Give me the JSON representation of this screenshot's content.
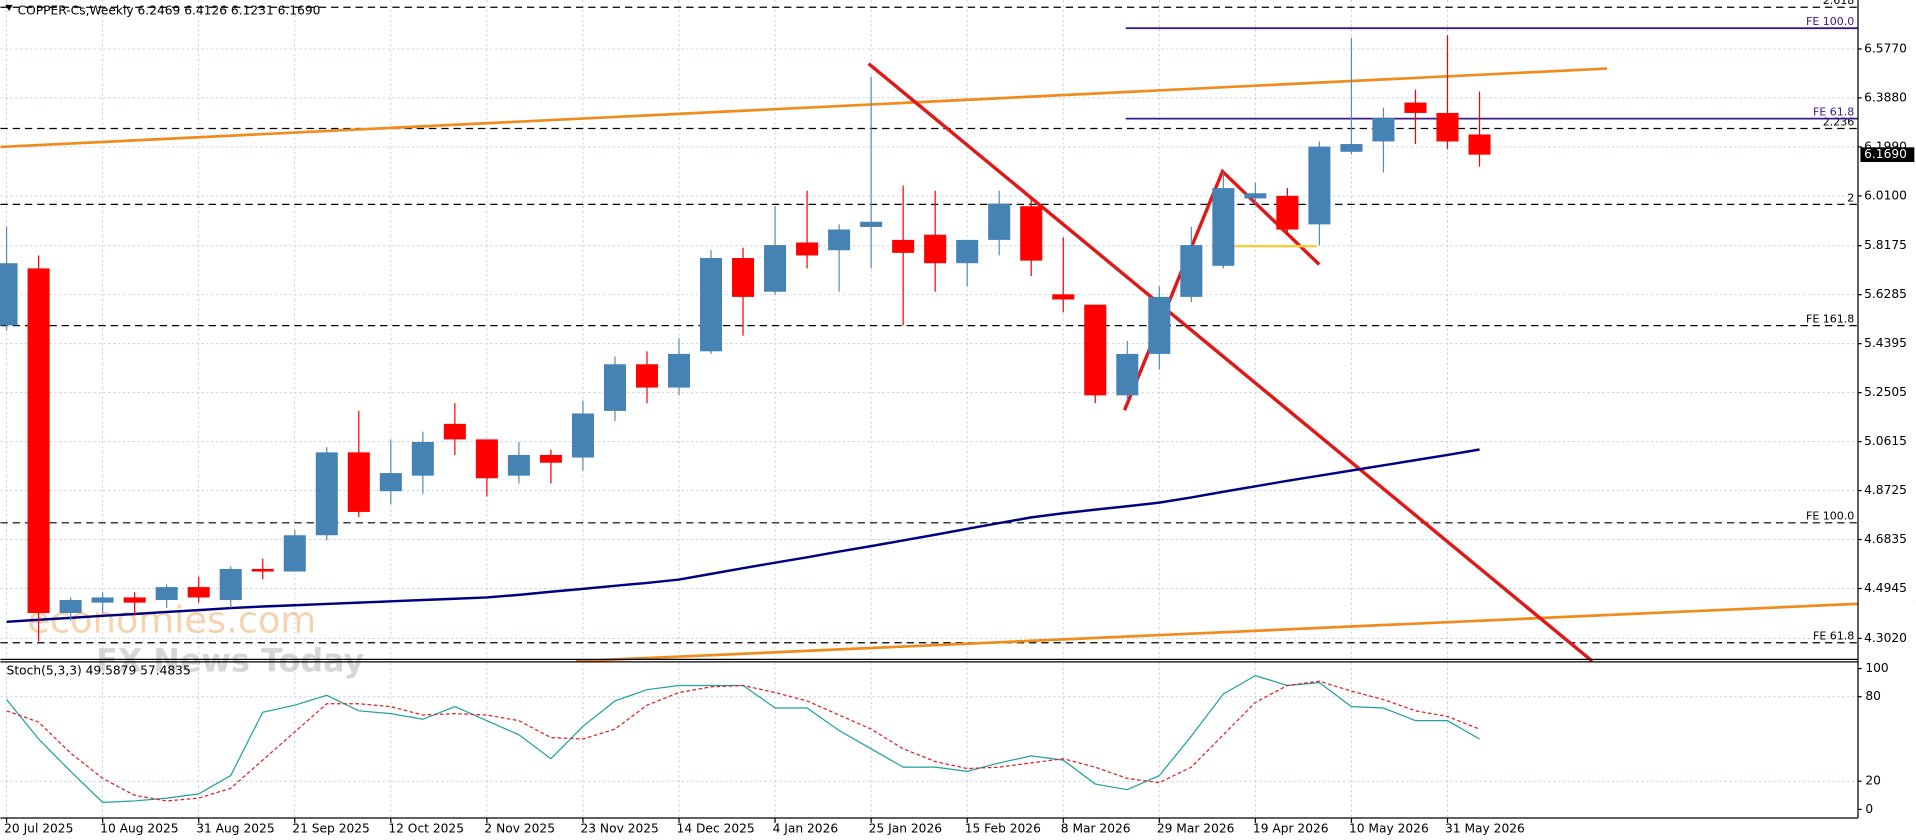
{
  "chart_data": [
    {
      "type": "candlestick",
      "title": "COPPER-Cs,Weekly  6.2469 6.4126 6.1231 6.1690",
      "categories": [
        "20 Jul 2025",
        null,
        null,
        "10 Aug 2025",
        null,
        null,
        "31 Aug 2025",
        null,
        null,
        "21 Sep 2025",
        null,
        null,
        "12 Oct 2025",
        null,
        null,
        "2 Nov 2025",
        null,
        null,
        "23 Nov 2025",
        null,
        null,
        "14 Dec 2025",
        null,
        null,
        "4 Jan 2026",
        null,
        null,
        "25 Jan 2026",
        null,
        null,
        "15 Feb 2026",
        null,
        null,
        "8 Mar 2026",
        null,
        null,
        "29 Mar 2026",
        null,
        null,
        "19 Apr 2026",
        null,
        null,
        "10 May 2026",
        null,
        null,
        "31 May 2026",
        null
      ],
      "open": [
        5.51,
        5.73,
        4.4,
        4.44,
        4.46,
        4.45,
        4.5,
        4.45,
        4.57,
        4.56,
        4.7,
        5.02,
        4.87,
        4.93,
        5.13,
        5.07,
        4.93,
        5.01,
        5.0,
        5.18,
        5.36,
        5.27,
        5.41,
        5.77,
        5.64,
        5.83,
        5.8,
        5.89,
        5.84,
        5.86,
        5.75,
        5.84,
        5.97,
        5.63,
        5.59,
        5.24,
        5.4,
        5.62,
        5.74,
        6.0,
        6.01,
        5.9,
        6.18,
        6.22,
        6.37,
        6.33,
        6.2469
      ],
      "high": [
        5.89,
        5.78,
        4.46,
        4.48,
        4.48,
        4.51,
        4.54,
        4.58,
        4.61,
        4.72,
        5.04,
        5.18,
        5.07,
        5.1,
        5.21,
        5.07,
        5.06,
        5.03,
        5.22,
        5.39,
        5.41,
        5.46,
        5.8,
        5.81,
        5.97,
        6.03,
        5.9,
        6.47,
        6.05,
        6.03,
        5.84,
        6.03,
        6.0,
        5.85,
        5.59,
        5.45,
        5.66,
        5.89,
        6.1,
        6.06,
        6.04,
        6.22,
        6.62,
        6.35,
        6.42,
        6.63,
        6.4126
      ],
      "low": [
        5.49,
        4.29,
        4.37,
        4.4,
        4.39,
        4.42,
        4.44,
        4.42,
        4.53,
        4.56,
        4.68,
        4.77,
        4.82,
        4.86,
        5.01,
        4.85,
        4.9,
        4.9,
        4.95,
        5.14,
        5.21,
        5.24,
        5.4,
        5.47,
        5.63,
        5.73,
        5.64,
        5.73,
        5.51,
        5.64,
        5.66,
        5.78,
        5.7,
        5.56,
        5.21,
        5.22,
        5.34,
        5.6,
        5.73,
        5.98,
        5.86,
        5.82,
        6.17,
        6.1,
        6.21,
        6.19,
        6.1231
      ],
      "close": [
        5.75,
        4.4,
        4.45,
        4.46,
        4.44,
        4.5,
        4.46,
        4.57,
        4.56,
        4.7,
        5.02,
        4.79,
        4.94,
        5.06,
        5.07,
        4.92,
        5.01,
        4.98,
        5.17,
        5.36,
        5.27,
        5.4,
        5.77,
        5.62,
        5.82,
        5.78,
        5.88,
        5.91,
        5.79,
        5.75,
        5.84,
        5.98,
        5.76,
        5.61,
        5.24,
        5.4,
        5.62,
        5.82,
        6.04,
        6.02,
        5.88,
        6.2,
        6.21,
        6.31,
        6.33,
        6.22,
        6.169
      ],
      "up_color": "#4682b4",
      "down_color": "#ff0000",
      "moving_average": {
        "color": "#000080",
        "values": [
          4.366,
          4.374,
          4.381,
          4.389,
          4.396,
          4.404,
          4.411,
          4.419,
          4.425,
          4.43,
          4.435,
          4.44,
          4.445,
          4.45,
          4.455,
          4.46,
          4.47,
          4.482,
          4.493,
          4.505,
          4.516,
          4.529,
          4.551,
          4.573,
          4.594,
          4.615,
          4.637,
          4.658,
          4.68,
          4.702,
          4.725,
          4.747,
          4.769,
          4.785,
          4.799,
          4.812,
          4.826,
          4.846,
          4.868,
          4.889,
          4.91,
          4.93,
          4.95,
          4.97,
          4.99,
          5.01,
          5.031
        ]
      },
      "ylim": [
        4.228,
        6.747
      ],
      "yticks": [
        {
          "value": 6.577,
          "label": "6.5770"
        },
        {
          "value": 6.388,
          "label": "6.3880"
        },
        {
          "value": 6.199,
          "label": "6.1990"
        },
        {
          "value": 6.01,
          "label": "6.0100"
        },
        5.8175,
        5.6285,
        5.4395,
        5.2505,
        5.0615,
        4.8725,
        4.6835,
        4.4945,
        {
          "value": 4.302,
          "label": "4.3020"
        }
      ],
      "current_price": {
        "value": 6.169,
        "label": "6.1690"
      },
      "levels": [
        {
          "value": 6.738,
          "label": "2.618",
          "color": "#000000",
          "style": "dashed"
        },
        {
          "value": 6.27,
          "label": "2.236",
          "color": "#000000",
          "style": "dashed"
        },
        {
          "value": 5.977,
          "label": "2",
          "color": "#000000",
          "style": "dashed"
        },
        {
          "value": 5.509,
          "label": "FE 161.8",
          "color": "#000000",
          "style": "dashed"
        },
        {
          "value": 4.748,
          "label": "FE 100.0",
          "color": "#000000",
          "style": "dashed"
        },
        {
          "value": 4.285,
          "label": "FE 61.8",
          "color": "#000000",
          "style": "dashed"
        },
        {
          "value": 6.657,
          "label": "FE 100.0",
          "color": "#3d1a8a",
          "style": "solid"
        },
        {
          "value": 6.308,
          "label": "FE 61.8",
          "color": "#3d1a8a",
          "style": "solid"
        }
      ],
      "watermark": [
        "economies.com",
        "FX News Today"
      ],
      "grid": true
    },
    {
      "type": "line",
      "title": "Stoch(5,3,3) 49.5879 57.4835",
      "series": [
        {
          "color": "#20a0a0",
          "style": "solid",
          "values": [
            78,
            50,
            27,
            5,
            6,
            8,
            11,
            24,
            69,
            74,
            81,
            70,
            68,
            64,
            73,
            63,
            53,
            36,
            59,
            77,
            85,
            88,
            88,
            88,
            72,
            72,
            56,
            43,
            30,
            30,
            27,
            33,
            38,
            35,
            18,
            14,
            24,
            52,
            82,
            95,
            88,
            90,
            73,
            72,
            63,
            63,
            50
          ]
        },
        {
          "color": "#e02020",
          "style": "dashed",
          "values": [
            70,
            62,
            40,
            22,
            10,
            6,
            8,
            15,
            35,
            55,
            75,
            75,
            73,
            67,
            68,
            67,
            63,
            51,
            50,
            57,
            74,
            83,
            87,
            88,
            83,
            77,
            67,
            57,
            43,
            34,
            29,
            30,
            33,
            36,
            30,
            22,
            19,
            30,
            53,
            76,
            88,
            91,
            84,
            78,
            70,
            66,
            57
          ]
        }
      ],
      "ylim": [
        0,
        100
      ],
      "yticks": [
        0,
        20,
        80,
        100
      ],
      "grid": true
    }
  ]
}
